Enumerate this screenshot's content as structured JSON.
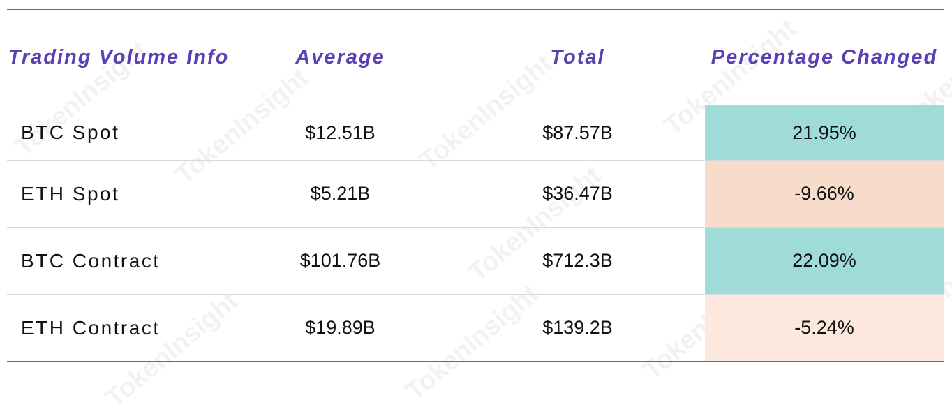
{
  "watermark": "TokenInsight",
  "table": {
    "header": [
      "Trading Volume Info",
      "Average",
      "Total",
      "Percentage Changed"
    ],
    "rows": [
      [
        "BTC Spot",
        "$12.51B",
        "$87.57B",
        "21.95%"
      ],
      [
        "ETH Spot",
        "$5.21B",
        "$36.47B",
        "-9.66%"
      ],
      [
        "BTC Contract",
        "$101.76B",
        "$712.3B",
        "22.09%"
      ],
      [
        "ETH Contract",
        "$19.89B",
        "$139.2B",
        "-5.24%"
      ]
    ],
    "highlight_colors": [
      "#9fdbd9",
      "#f8dccb",
      "#9fdbd9",
      "#fce8dc"
    ]
  }
}
